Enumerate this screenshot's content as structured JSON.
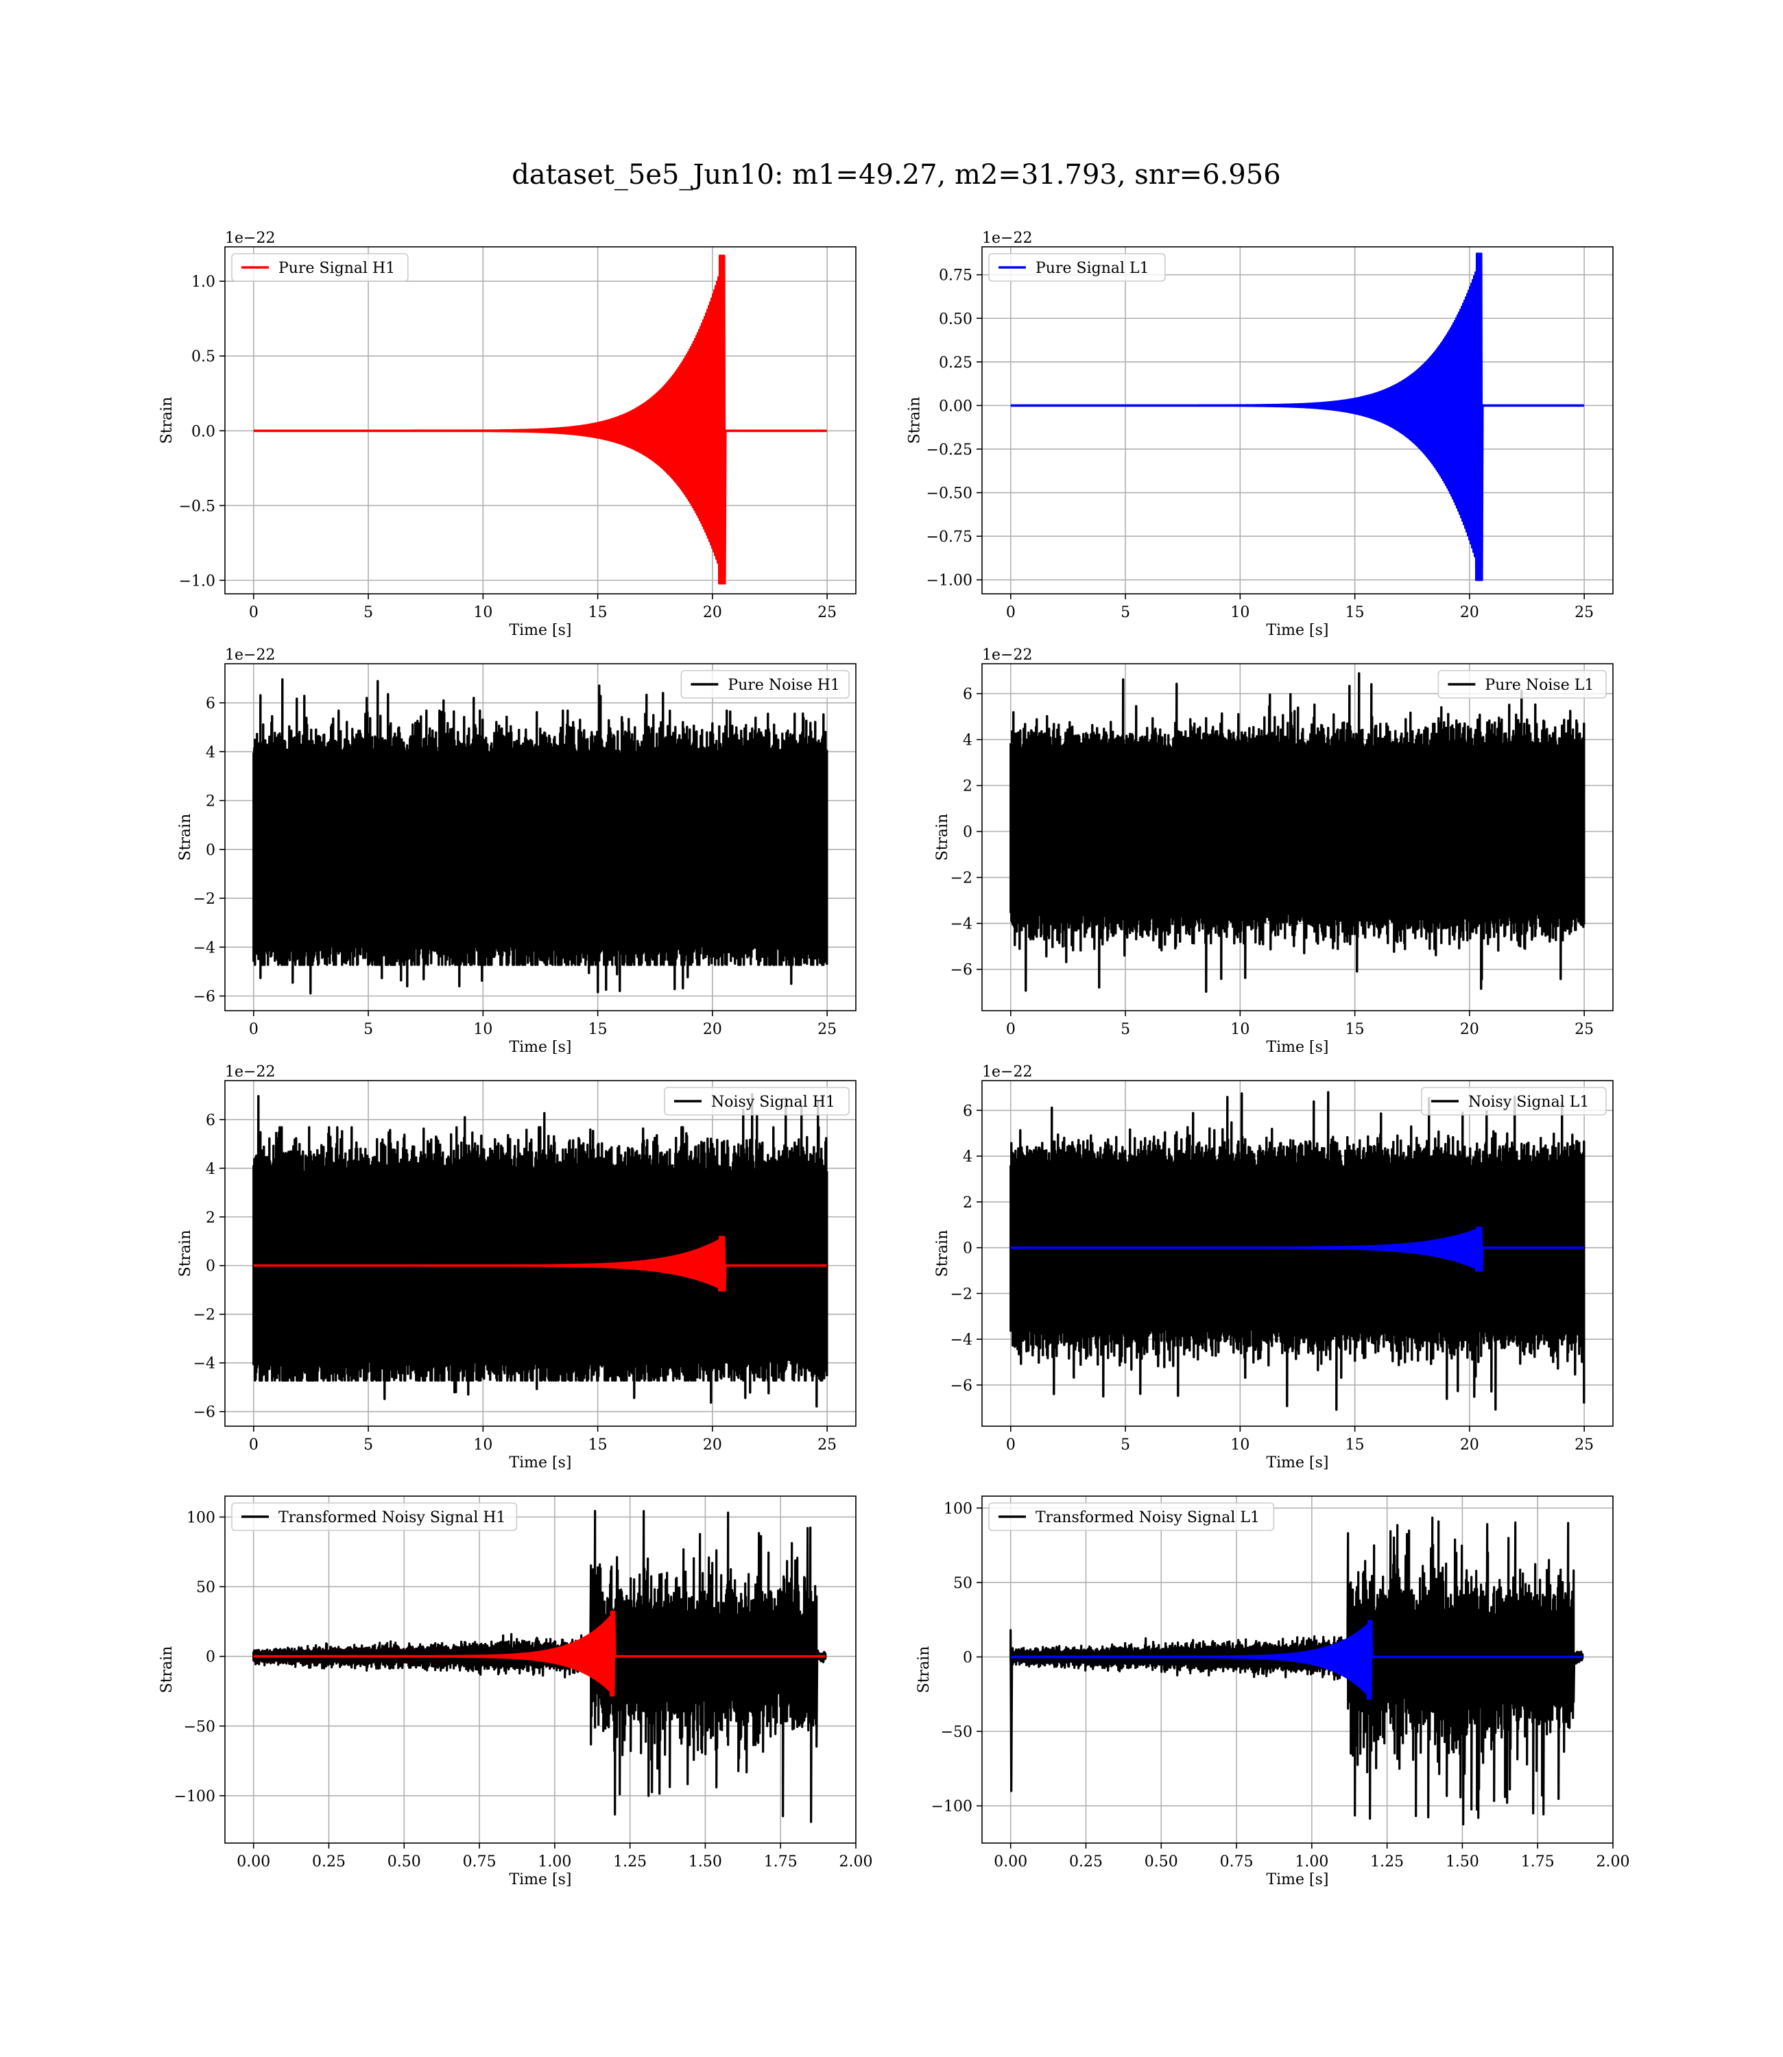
{
  "figure": {
    "title": "dataset_5e5_Jun10: m1=49.27, m2=31.793, snr=6.956"
  },
  "colors": {
    "h1_signal": "#ff0000",
    "l1_signal": "#0000ff",
    "noise": "#000000",
    "grid": "#b0b0b0"
  },
  "chart_data": [
    {
      "type": "line",
      "panel": "pure-signal-h1",
      "xlabel": "Time [s]",
      "ylabel": "Strain",
      "offset_text": "1e−22",
      "xlim": [
        -1.25,
        26.25
      ],
      "ylim": [
        -1.09,
        1.23
      ],
      "xticks": [
        0,
        5,
        10,
        15,
        20,
        25
      ],
      "xtick_labels": [
        "0",
        "5",
        "10",
        "15",
        "20",
        "25"
      ],
      "yticks": [
        -1.0,
        -0.5,
        0.0,
        0.5,
        1.0
      ],
      "ytick_labels": [
        "−1.0",
        "−0.5",
        "0.0",
        "0.5",
        "1.0"
      ],
      "legend": {
        "loc": "upper-left"
      },
      "series": [
        {
          "name": "Pure Signal H1",
          "color": "#ff0000",
          "kind": "chirp",
          "t_start": 0,
          "t_end": 25,
          "t_merge": 20.55,
          "peak_pos": 1.17,
          "peak_neg": -1.02
        }
      ]
    },
    {
      "type": "line",
      "panel": "pure-signal-l1",
      "xlabel": "Time [s]",
      "ylabel": "Strain",
      "offset_text": "1e−22",
      "xlim": [
        -1.25,
        26.25
      ],
      "ylim": [
        -1.08,
        0.91
      ],
      "xticks": [
        0,
        5,
        10,
        15,
        20,
        25
      ],
      "xtick_labels": [
        "0",
        "5",
        "10",
        "15",
        "20",
        "25"
      ],
      "yticks": [
        -1.0,
        -0.75,
        -0.5,
        -0.25,
        0.0,
        0.25,
        0.5,
        0.75
      ],
      "ytick_labels": [
        "−1.00",
        "−0.75",
        "−0.50",
        "−0.25",
        "0.00",
        "0.25",
        "0.50",
        "0.75"
      ],
      "legend": {
        "loc": "upper-left"
      },
      "series": [
        {
          "name": "Pure Signal L1",
          "color": "#0000ff",
          "kind": "chirp",
          "t_start": 0,
          "t_end": 25,
          "t_merge": 20.55,
          "peak_pos": 0.87,
          "peak_neg": -1.0
        }
      ]
    },
    {
      "type": "line",
      "panel": "pure-noise-h1",
      "xlabel": "Time [s]",
      "ylabel": "Strain",
      "offset_text": "1e−22",
      "xlim": [
        -1.25,
        26.25
      ],
      "ylim": [
        -6.6,
        7.6
      ],
      "xticks": [
        0,
        5,
        10,
        15,
        20,
        25
      ],
      "xtick_labels": [
        "0",
        "5",
        "10",
        "15",
        "20",
        "25"
      ],
      "yticks": [
        -6,
        -4,
        -2,
        0,
        2,
        4,
        6
      ],
      "ytick_labels": [
        "−6",
        "−4",
        "−2",
        "0",
        "2",
        "4",
        "6"
      ],
      "legend": {
        "loc": "upper-right"
      },
      "series": [
        {
          "name": "Pure Noise H1",
          "color": "#000000",
          "kind": "noise",
          "t_start": 0,
          "t_end": 25,
          "band": [
            -3.8,
            3.8
          ],
          "max": 7.1,
          "min": -5.9
        }
      ]
    },
    {
      "type": "line",
      "panel": "pure-noise-l1",
      "xlabel": "Time [s]",
      "ylabel": "Strain",
      "offset_text": "1e−22",
      "xlim": [
        -1.25,
        26.25
      ],
      "ylim": [
        -7.8,
        7.3
      ],
      "xticks": [
        0,
        5,
        10,
        15,
        20,
        25
      ],
      "xtick_labels": [
        "0",
        "5",
        "10",
        "15",
        "20",
        "25"
      ],
      "yticks": [
        -6,
        -4,
        -2,
        0,
        2,
        4,
        6
      ],
      "ytick_labels": [
        "−6",
        "−4",
        "−2",
        "0",
        "2",
        "4",
        "6"
      ],
      "legend": {
        "loc": "upper-right"
      },
      "series": [
        {
          "name": "Pure Noise L1",
          "color": "#000000",
          "kind": "noise",
          "t_start": 0,
          "t_end": 25,
          "band": [
            -3.5,
            3.5
          ],
          "max": 6.9,
          "min": -7.1
        }
      ]
    },
    {
      "type": "line",
      "panel": "noisy-signal-h1",
      "xlabel": "Time [s]",
      "ylabel": "Strain",
      "offset_text": "1e−22",
      "xlim": [
        -1.25,
        26.25
      ],
      "ylim": [
        -6.6,
        7.6
      ],
      "xticks": [
        0,
        5,
        10,
        15,
        20,
        25
      ],
      "xtick_labels": [
        "0",
        "5",
        "10",
        "15",
        "20",
        "25"
      ],
      "yticks": [
        -6,
        -4,
        -2,
        0,
        2,
        4,
        6
      ],
      "ytick_labels": [
        "−6",
        "−4",
        "−2",
        "0",
        "2",
        "4",
        "6"
      ],
      "legend": {
        "loc": "upper-right"
      },
      "series": [
        {
          "name": "Noisy Signal H1",
          "color": "#000000",
          "kind": "noise",
          "t_start": 0,
          "t_end": 25,
          "band": [
            -3.8,
            3.8
          ],
          "max": 7.1,
          "min": -5.9
        },
        {
          "name": "",
          "color": "#ff0000",
          "kind": "chirp",
          "t_start": 0,
          "t_end": 25,
          "t_merge": 20.55,
          "peak_pos": 1.17,
          "peak_neg": -1.02
        }
      ]
    },
    {
      "type": "line",
      "panel": "noisy-signal-l1",
      "xlabel": "Time [s]",
      "ylabel": "Strain",
      "offset_text": "1e−22",
      "xlim": [
        -1.25,
        26.25
      ],
      "ylim": [
        -7.8,
        7.3
      ],
      "xticks": [
        0,
        5,
        10,
        15,
        20,
        25
      ],
      "xtick_labels": [
        "0",
        "5",
        "10",
        "15",
        "20",
        "25"
      ],
      "yticks": [
        -6,
        -4,
        -2,
        0,
        2,
        4,
        6
      ],
      "ytick_labels": [
        "−6",
        "−4",
        "−2",
        "0",
        "2",
        "4",
        "6"
      ],
      "legend": {
        "loc": "upper-right"
      },
      "series": [
        {
          "name": "Noisy Signal L1",
          "color": "#000000",
          "kind": "noise",
          "t_start": 0,
          "t_end": 25,
          "band": [
            -3.5,
            3.5
          ],
          "max": 6.9,
          "min": -7.1
        },
        {
          "name": "",
          "color": "#0000ff",
          "kind": "chirp",
          "t_start": 0,
          "t_end": 25,
          "t_merge": 20.55,
          "peak_pos": 0.87,
          "peak_neg": -1.0
        }
      ]
    },
    {
      "type": "line",
      "panel": "transformed-noisy-signal-h1",
      "xlabel": "Time [s]",
      "ylabel": "Strain",
      "offset_text": "",
      "xlim": [
        -0.095,
        2.0
      ],
      "ylim": [
        -134,
        115
      ],
      "xticks": [
        0.0,
        0.25,
        0.5,
        0.75,
        1.0,
        1.25,
        1.5,
        1.75,
        2.0
      ],
      "xtick_labels": [
        "0.00",
        "0.25",
        "0.50",
        "0.75",
        "1.00",
        "1.25",
        "1.50",
        "1.75",
        "2.00"
      ],
      "yticks": [
        -100,
        -50,
        0,
        50,
        100
      ],
      "ytick_labels": [
        "−100",
        "−50",
        "0",
        "50",
        "100"
      ],
      "legend": {
        "loc": "upper-left"
      },
      "series": [
        {
          "name": "Transformed Noisy Signal H1",
          "color": "#000000",
          "kind": "whitened",
          "t_start": 0,
          "t_end": 1.9,
          "t_jump": 1.12,
          "t_cut": 1.87,
          "pre_band": [
            -8,
            8
          ],
          "post_band": [
            -55,
            55
          ],
          "max": 105,
          "min": -123
        },
        {
          "name": "",
          "color": "#ff0000",
          "kind": "chirp",
          "t_start": 0,
          "t_end": 1.9,
          "t_merge": 1.2,
          "peak_pos": 32,
          "peak_neg": -28
        }
      ]
    },
    {
      "type": "line",
      "panel": "transformed-noisy-signal-l1",
      "xlabel": "Time [s]",
      "ylabel": "Strain",
      "offset_text": "",
      "xlim": [
        -0.095,
        2.0
      ],
      "ylim": [
        -125,
        108
      ],
      "xticks": [
        0.0,
        0.25,
        0.5,
        0.75,
        1.0,
        1.25,
        1.5,
        1.75,
        2.0
      ],
      "xtick_labels": [
        "0.00",
        "0.25",
        "0.50",
        "0.75",
        "1.00",
        "1.25",
        "1.50",
        "1.75",
        "2.00"
      ],
      "yticks": [
        -100,
        -50,
        0,
        50,
        100
      ],
      "ytick_labels": [
        "−100",
        "−50",
        "0",
        "50",
        "100"
      ],
      "legend": {
        "loc": "upper-left"
      },
      "series": [
        {
          "name": "Transformed Noisy Signal L1",
          "color": "#000000",
          "kind": "whitened",
          "t_start": 0,
          "t_end": 1.9,
          "t_jump": 1.12,
          "t_cut": 1.87,
          "pre_band": [
            -8,
            8
          ],
          "post_band": [
            -55,
            55
          ],
          "max": 100,
          "min": -113,
          "start_spike": [
            18,
            -90
          ]
        },
        {
          "name": "",
          "color": "#0000ff",
          "kind": "chirp",
          "t_start": 0,
          "t_end": 1.9,
          "t_merge": 1.2,
          "peak_pos": 24,
          "peak_neg": -28
        }
      ]
    }
  ]
}
